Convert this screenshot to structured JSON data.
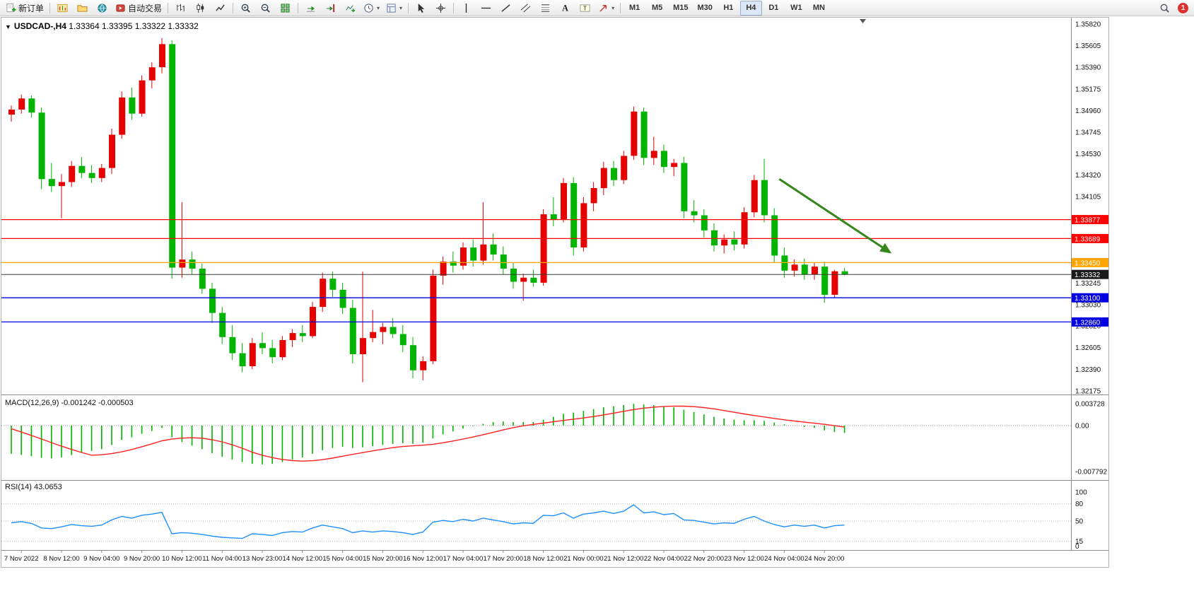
{
  "toolbar": {
    "items": [
      {
        "type": "button",
        "name": "new-order-button",
        "icon": "new-order",
        "label": "新订单"
      },
      {
        "type": "sep"
      },
      {
        "type": "iconbtn",
        "name": "new-chart-button",
        "icon": "new-chart"
      },
      {
        "type": "iconbtn",
        "name": "profiles-button",
        "icon": "profiles"
      },
      {
        "type": "iconbtn",
        "name": "community-button",
        "icon": "community"
      },
      {
        "type": "button",
        "name": "autotrading-button",
        "icon": "autotrading",
        "label": "自动交易"
      },
      {
        "type": "sep"
      },
      {
        "type": "iconbtn",
        "name": "bar-chart-button",
        "icon": "bar-chart"
      },
      {
        "type": "iconbtn",
        "name": "candlestick-chart-button",
        "icon": "candlestick"
      },
      {
        "type": "iconbtn",
        "name": "line-chart-button",
        "icon": "line-chart"
      },
      {
        "type": "sep"
      },
      {
        "type": "iconbtn",
        "name": "zoom-in-button",
        "icon": "zoom-in"
      },
      {
        "type": "iconbtn",
        "name": "zoom-out-button",
        "icon": "zoom-out"
      },
      {
        "type": "iconbtn",
        "name": "tile-windows-button",
        "icon": "tile-windows"
      },
      {
        "type": "sep"
      },
      {
        "type": "iconbtn",
        "name": "auto-scroll-button",
        "icon": "auto-scroll"
      },
      {
        "type": "iconbtn",
        "name": "chart-shift-button",
        "icon": "chart-shift"
      },
      {
        "type": "iconbtn",
        "name": "indicators-button",
        "icon": "indicators"
      },
      {
        "type": "iconbtn",
        "name": "periods-dropdown",
        "icon": "clock",
        "caret": true
      },
      {
        "type": "iconbtn",
        "name": "templates-dropdown",
        "icon": "templates",
        "caret": true
      },
      {
        "type": "sep"
      },
      {
        "type": "iconbtn",
        "name": "cursor-button",
        "icon": "cursor"
      },
      {
        "type": "iconbtn",
        "name": "crosshair-button",
        "icon": "crosshair"
      },
      {
        "type": "sep"
      },
      {
        "type": "iconbtn",
        "name": "vertical-line-button",
        "icon": "vertical-line"
      },
      {
        "type": "iconbtn",
        "name": "horizontal-line-button",
        "icon": "horizontal-line"
      },
      {
        "type": "iconbtn",
        "name": "trendline-button",
        "icon": "trendline"
      },
      {
        "type": "iconbtn",
        "name": "channel-button",
        "icon": "channel"
      },
      {
        "type": "iconbtn",
        "name": "fibonacci-button",
        "icon": "fibonacci"
      },
      {
        "type": "iconbtn",
        "name": "text-button",
        "icon": "text"
      },
      {
        "type": "iconbtn",
        "name": "text-label-button",
        "icon": "text-label"
      },
      {
        "type": "iconbtn",
        "name": "arrows-dropdown",
        "icon": "arrows",
        "caret": true
      },
      {
        "type": "sep"
      },
      {
        "type": "tf",
        "name": "timeframe-m1-button",
        "label": "M1"
      },
      {
        "type": "tf",
        "name": "timeframe-m5-button",
        "label": "M5"
      },
      {
        "type": "tf",
        "name": "timeframe-m15-button",
        "label": "M15"
      },
      {
        "type": "tf",
        "name": "timeframe-m30-button",
        "label": "M30"
      },
      {
        "type": "tf",
        "name": "timeframe-h1-button",
        "label": "H1"
      },
      {
        "type": "tf",
        "name": "timeframe-h4-button",
        "label": "H4",
        "active": true
      },
      {
        "type": "tf",
        "name": "timeframe-d1-button",
        "label": "D1"
      },
      {
        "type": "tf",
        "name": "timeframe-w1-button",
        "label": "W1"
      },
      {
        "type": "tf",
        "name": "timeframe-mn-button",
        "label": "MN"
      },
      {
        "type": "spacer"
      },
      {
        "type": "iconbtn",
        "name": "search-button",
        "icon": "search"
      },
      {
        "type": "badge",
        "name": "notification-badge",
        "label": "1"
      }
    ]
  },
  "chart": {
    "title": "USDCAD-,H4",
    "ohlc_text": "1.33364 1.33395 1.33322 1.33332",
    "one_click_toggle": "▼"
  },
  "price_axis": {
    "labels": [
      "1.35820",
      "1.35605",
      "1.35390",
      "1.35175",
      "1.34960",
      "1.34745",
      "1.34530",
      "1.34320",
      "1.34105",
      "1.33890",
      "1.33675",
      "1.33460",
      "1.33245",
      "1.33030",
      "1.32820",
      "1.32605",
      "1.32390",
      "1.32175"
    ],
    "tags": [
      {
        "value": "1.33877",
        "color": "#FF0000"
      },
      {
        "value": "1.33689",
        "color": "#FF0000"
      },
      {
        "value": "1.33450",
        "color": "#FFA500"
      },
      {
        "value": "1.33332",
        "color": "#1A1A1A"
      },
      {
        "value": "1.33100",
        "color": "#0000E0"
      },
      {
        "value": "1.32860",
        "color": "#0000E0"
      }
    ]
  },
  "annotation_arrow": {
    "from_index": 76.5,
    "from_price": 1.3428,
    "to_index": 87.4,
    "to_price": 1.3356,
    "color": "#36871B"
  },
  "chart_data": [
    {
      "type": "candlestick",
      "title": "USDCAD-,H4",
      "up_color": "#E60000",
      "down_color": "#00B400",
      "ylim": [
        1.3214,
        1.35883
      ],
      "bid_price": 1.33332,
      "hlines": [
        {
          "price": 1.33877,
          "color": "#FF0000"
        },
        {
          "price": 1.33689,
          "color": "#FF0000"
        },
        {
          "price": 1.3345,
          "color": "#FFA500"
        },
        {
          "price": 1.331,
          "color": "#0000E0"
        },
        {
          "price": 1.3286,
          "color": "#0000E0"
        }
      ],
      "x_labels": [
        "7 Nov 2022",
        "8 Nov 12:00",
        "9 Nov 04:00",
        "9 Nov 20:00",
        "10 Nov 12:00",
        "11 Nov 04:00",
        "13 Nov 23:00",
        "14 Nov 12:00",
        "15 Nov 04:00",
        "15 Nov 20:00",
        "16 Nov 12:00",
        "17 Nov 04:00",
        "17 Nov 20:00",
        "18 Nov 12:00",
        "21 Nov 00:00",
        "21 Nov 12:00",
        "22 Nov 04:00",
        "22 Nov 20:00",
        "23 Nov 12:00",
        "24 Nov 04:00",
        "24 Nov 20:00"
      ],
      "candles": [
        [
          1.3492,
          1.3501,
          1.3485,
          1.3497
        ],
        [
          1.3497,
          1.3512,
          1.3493,
          1.3508
        ],
        [
          1.3508,
          1.3511,
          1.3489,
          1.3494
        ],
        [
          1.3494,
          1.3499,
          1.3418,
          1.3428
        ],
        [
          1.3428,
          1.3444,
          1.3415,
          1.3421
        ],
        [
          1.3421,
          1.3433,
          1.3389,
          1.3425
        ],
        [
          1.3425,
          1.3446,
          1.342,
          1.3441
        ],
        [
          1.3441,
          1.345,
          1.3429,
          1.3434
        ],
        [
          1.3434,
          1.3442,
          1.3424,
          1.3429
        ],
        [
          1.3429,
          1.3443,
          1.3425,
          1.3439
        ],
        [
          1.3439,
          1.3478,
          1.3433,
          1.3472
        ],
        [
          1.3472,
          1.3515,
          1.3468,
          1.3509
        ],
        [
          1.3509,
          1.3519,
          1.3487,
          1.3493
        ],
        [
          1.3493,
          1.3531,
          1.349,
          1.3526
        ],
        [
          1.3526,
          1.3544,
          1.3518,
          1.3539
        ],
        [
          1.3539,
          1.3568,
          1.3533,
          1.3562
        ],
        [
          1.3562,
          1.3566,
          1.3329,
          1.334
        ],
        [
          1.334,
          1.3405,
          1.333,
          1.3348
        ],
        [
          1.3348,
          1.3356,
          1.3333,
          1.3339
        ],
        [
          1.3339,
          1.3344,
          1.3314,
          1.3319
        ],
        [
          1.3319,
          1.3325,
          1.3285,
          1.3295
        ],
        [
          1.3295,
          1.3301,
          1.3264,
          1.3271
        ],
        [
          1.3271,
          1.3283,
          1.3248,
          1.3255
        ],
        [
          1.3255,
          1.3265,
          1.3236,
          1.3242
        ],
        [
          1.3242,
          1.327,
          1.3239,
          1.3265
        ],
        [
          1.3265,
          1.3276,
          1.3254,
          1.326
        ],
        [
          1.326,
          1.3268,
          1.3245,
          1.3251
        ],
        [
          1.3251,
          1.3272,
          1.3248,
          1.3268
        ],
        [
          1.3268,
          1.3279,
          1.3261,
          1.3275
        ],
        [
          1.3275,
          1.3283,
          1.3266,
          1.3272
        ],
        [
          1.3272,
          1.3306,
          1.327,
          1.3301
        ],
        [
          1.3301,
          1.3335,
          1.3296,
          1.3329
        ],
        [
          1.3329,
          1.3336,
          1.3311,
          1.3318
        ],
        [
          1.3318,
          1.3325,
          1.3294,
          1.33
        ],
        [
          1.33,
          1.3308,
          1.3245,
          1.3254
        ],
        [
          1.3254,
          1.3336,
          1.3226,
          1.327
        ],
        [
          1.327,
          1.3298,
          1.3266,
          1.3276
        ],
        [
          1.3276,
          1.3285,
          1.3264,
          1.3281
        ],
        [
          1.3281,
          1.329,
          1.327,
          1.3274
        ],
        [
          1.3274,
          1.3283,
          1.3256,
          1.3263
        ],
        [
          1.3263,
          1.3271,
          1.323,
          1.3238
        ],
        [
          1.3238,
          1.3252,
          1.3228,
          1.3247
        ],
        [
          1.3247,
          1.3338,
          1.3244,
          1.3332
        ],
        [
          1.3332,
          1.3351,
          1.3323,
          1.3346
        ],
        [
          1.3346,
          1.3356,
          1.3335,
          1.3342
        ],
        [
          1.3342,
          1.3365,
          1.3338,
          1.336
        ],
        [
          1.336,
          1.3368,
          1.3341,
          1.3347
        ],
        [
          1.3347,
          1.3405,
          1.3343,
          1.3363
        ],
        [
          1.3363,
          1.3374,
          1.3347,
          1.3353
        ],
        [
          1.3353,
          1.3361,
          1.3333,
          1.3339
        ],
        [
          1.3339,
          1.3345,
          1.3319,
          1.3326
        ],
        [
          1.3326,
          1.3334,
          1.3307,
          1.333
        ],
        [
          1.333,
          1.3338,
          1.3321,
          1.3325
        ],
        [
          1.3325,
          1.3398,
          1.3322,
          1.3393
        ],
        [
          1.3393,
          1.341,
          1.3381,
          1.3388
        ],
        [
          1.3388,
          1.3429,
          1.3385,
          1.3424
        ],
        [
          1.3424,
          1.343,
          1.3352,
          1.336
        ],
        [
          1.336,
          1.341,
          1.3356,
          1.3404
        ],
        [
          1.3404,
          1.3425,
          1.3396,
          1.3419
        ],
        [
          1.3419,
          1.3445,
          1.3412,
          1.3439
        ],
        [
          1.3439,
          1.3446,
          1.3421,
          1.3427
        ],
        [
          1.3427,
          1.3456,
          1.3423,
          1.3451
        ],
        [
          1.3451,
          1.35,
          1.3447,
          1.3495
        ],
        [
          1.3495,
          1.3499,
          1.3442,
          1.3449
        ],
        [
          1.3449,
          1.347,
          1.3442,
          1.3456
        ],
        [
          1.3456,
          1.3462,
          1.3434,
          1.344
        ],
        [
          1.344,
          1.3448,
          1.3431,
          1.3444
        ],
        [
          1.3444,
          1.345,
          1.3389,
          1.3396
        ],
        [
          1.3396,
          1.3407,
          1.3385,
          1.3392
        ],
        [
          1.3392,
          1.3398,
          1.337,
          1.3377
        ],
        [
          1.3377,
          1.3384,
          1.3356,
          1.3362
        ],
        [
          1.3362,
          1.3373,
          1.3354,
          1.3368
        ],
        [
          1.3368,
          1.3376,
          1.3357,
          1.3363
        ],
        [
          1.3363,
          1.34,
          1.3359,
          1.3395
        ],
        [
          1.3395,
          1.3432,
          1.339,
          1.3427
        ],
        [
          1.3427,
          1.3448,
          1.3385,
          1.3392
        ],
        [
          1.3392,
          1.3399,
          1.3345,
          1.3352
        ],
        [
          1.3352,
          1.336,
          1.333,
          1.3337
        ],
        [
          1.3337,
          1.3348,
          1.3331,
          1.3343
        ],
        [
          1.3343,
          1.3349,
          1.3328,
          1.3333
        ],
        [
          1.3333,
          1.3345,
          1.3328,
          1.3341
        ],
        [
          1.3341,
          1.3346,
          1.3305,
          1.3313
        ],
        [
          1.3313,
          1.3338,
          1.331,
          1.33364
        ],
        [
          1.33364,
          1.33395,
          1.33322,
          1.33332
        ]
      ]
    },
    {
      "type": "bar",
      "name": "MACD(12,26,9)",
      "display_values": "-0.001242 -0.000503",
      "histogram_color": "#00B400",
      "signal_color": "#FF2020",
      "signal_period": 9,
      "ylim": [
        -0.007792,
        0.003728
      ],
      "axis": [
        {
          "v": 0.003728,
          "label": "0.003728"
        },
        {
          "v": 0,
          "label": "0.00"
        },
        {
          "v": -0.007792,
          "label": "-0.007792"
        }
      ],
      "values": [
        -0.0048,
        -0.005,
        -0.0052,
        -0.0055,
        -0.0056,
        -0.0054,
        -0.005,
        -0.0046,
        -0.0043,
        -0.004,
        -0.0033,
        -0.0024,
        -0.002,
        -0.0014,
        -0.0009,
        -0.0004,
        -0.002,
        -0.0028,
        -0.0034,
        -0.004,
        -0.0047,
        -0.0053,
        -0.0058,
        -0.0062,
        -0.0065,
        -0.0066,
        -0.0065,
        -0.0062,
        -0.0058,
        -0.0054,
        -0.0048,
        -0.0042,
        -0.0038,
        -0.0036,
        -0.0038,
        -0.0037,
        -0.0035,
        -0.0033,
        -0.0031,
        -0.003,
        -0.0031,
        -0.0029,
        -0.0022,
        -0.0015,
        -0.001,
        -0.0005,
        -0.0001,
        0.0003,
        0.0006,
        0.0007,
        0.0006,
        0.0006,
        0.0006,
        0.001,
        0.0015,
        0.002,
        0.0022,
        0.0025,
        0.0028,
        0.0031,
        0.0033,
        0.0035,
        0.0037,
        0.0036,
        0.0035,
        0.0033,
        0.0031,
        0.0027,
        0.0023,
        0.0019,
        0.0015,
        0.0012,
        0.001,
        0.0009,
        0.0009,
        0.0008,
        0.0005,
        0.0002,
        0.0,
        -0.0002,
        -0.0004,
        -0.0008,
        -0.0011,
        -0.001242
      ]
    },
    {
      "type": "line",
      "name": "RSI(14)",
      "current_display": "43.0653",
      "line_color": "#1E90FF",
      "ylim": [
        0,
        100
      ],
      "levels": [
        80,
        50,
        15
      ],
      "axis": [
        {
          "v": 100,
          "label": "100"
        },
        {
          "v": 80,
          "label": "80"
        },
        {
          "v": 50,
          "label": "50"
        },
        {
          "v": 15,
          "label": "15"
        },
        {
          "v": 0,
          "label": "0"
        }
      ],
      "values": [
        47,
        49,
        46,
        38,
        37,
        40,
        44,
        42,
        41,
        43,
        52,
        58,
        55,
        60,
        62,
        65,
        28,
        30,
        29,
        27,
        24,
        22,
        21,
        20,
        28,
        27,
        25,
        30,
        32,
        31,
        38,
        43,
        40,
        37,
        30,
        33,
        31,
        33,
        32,
        30,
        27,
        31,
        48,
        51,
        49,
        53,
        50,
        55,
        52,
        49,
        45,
        47,
        46,
        60,
        59,
        64,
        55,
        62,
        64,
        67,
        63,
        67,
        78,
        64,
        66,
        61,
        63,
        52,
        51,
        48,
        45,
        47,
        46,
        53,
        58,
        50,
        44,
        40,
        43,
        41,
        43,
        38,
        42,
        43.0653
      ]
    }
  ]
}
